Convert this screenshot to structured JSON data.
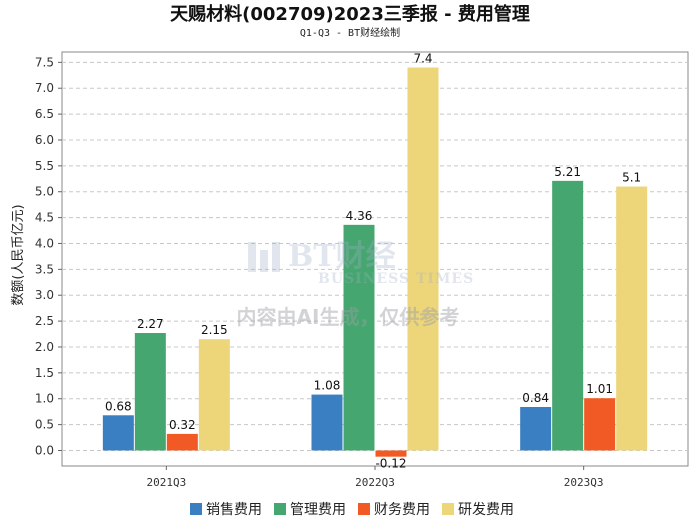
{
  "chart_data": {
    "type": "bar",
    "title": "天赐材料(002709)2023三季报 - 费用管理",
    "subtitle": "Q1-Q3 - BT财经绘制",
    "ylabel": "数额(人民币亿元)",
    "xlabel": "",
    "categories": [
      "2021Q3",
      "2022Q3",
      "2023Q3"
    ],
    "ylim": [
      -0.3,
      7.7
    ],
    "yticks": [
      "0.0",
      "0.5",
      "1.0",
      "1.5",
      "2.0",
      "2.5",
      "3.0",
      "3.5",
      "4.0",
      "4.5",
      "5.0",
      "5.5",
      "6.0",
      "6.5",
      "7.0",
      "7.5"
    ],
    "grid": true,
    "legend_position": "bottom",
    "series": [
      {
        "name": "销售费用",
        "color": "#3a7fc1",
        "values": [
          0.68,
          1.08,
          0.84
        ],
        "labels": [
          "0.68",
          "1.08",
          "0.84"
        ]
      },
      {
        "name": "管理费用",
        "color": "#46a66f",
        "values": [
          2.27,
          4.36,
          5.21
        ],
        "labels": [
          "2.27",
          "4.36",
          "5.21"
        ]
      },
      {
        "name": "财务费用",
        "color": "#f15a24",
        "values": [
          0.32,
          -0.12,
          1.01
        ],
        "labels": [
          "0.32",
          "-0.12",
          "1.01"
        ]
      },
      {
        "name": "研发费用",
        "color": "#edd57a",
        "values": [
          2.15,
          7.4,
          5.1
        ],
        "labels": [
          "2.15",
          "7.4",
          "5.1"
        ]
      }
    ]
  },
  "watermark": {
    "logo": "BT财经",
    "logo_sub": "BUSINESS TIMES",
    "text": "内容由AI生成，仅供参考"
  }
}
